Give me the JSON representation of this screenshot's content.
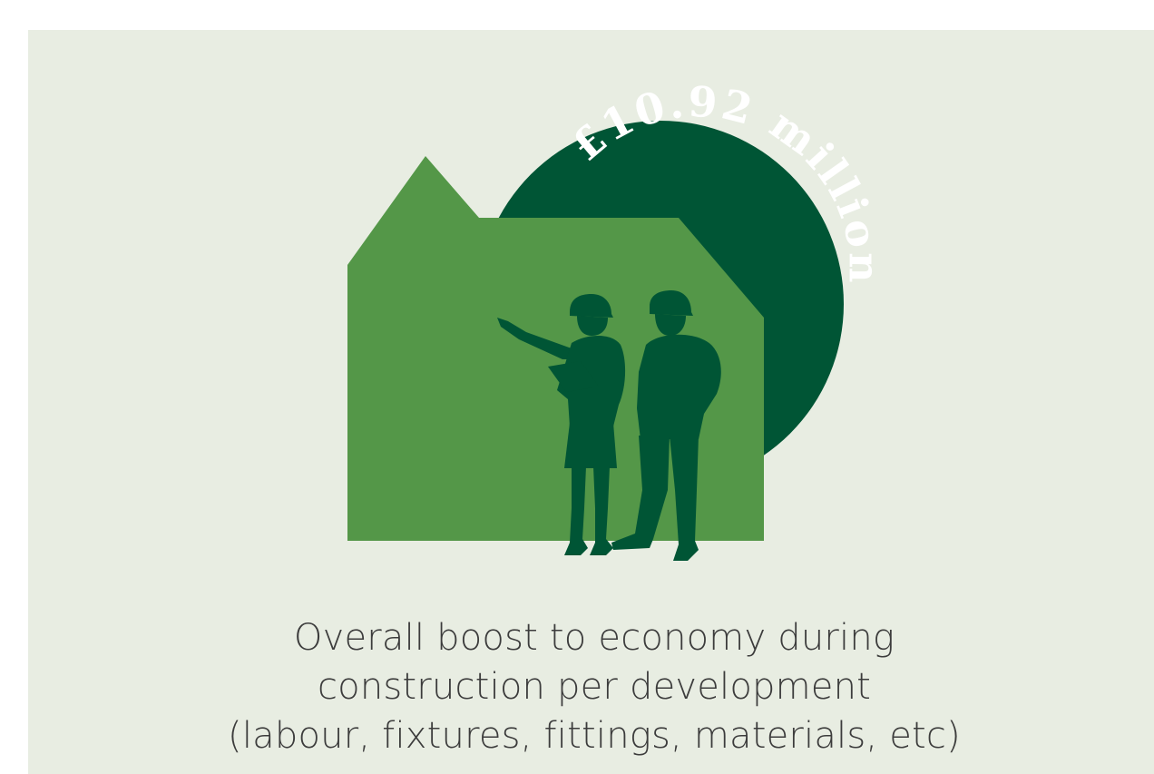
{
  "figure": {
    "amount_text": "£10.92 million",
    "caption_lines": [
      "Overall boost to economy during",
      "construction per development",
      "(labour, fixtures, fittings, materials, etc)"
    ]
  },
  "colors": {
    "background_panel": "#e8ede2",
    "house_green": "#549748",
    "dark_green": "#005535",
    "text_white": "#ffffff",
    "caption_text": "#3c3c3c"
  },
  "icons": {
    "house": "house-silhouette-icon",
    "workers": "construction-workers-silhouette-icon",
    "circle": "badge-circle-icon"
  }
}
